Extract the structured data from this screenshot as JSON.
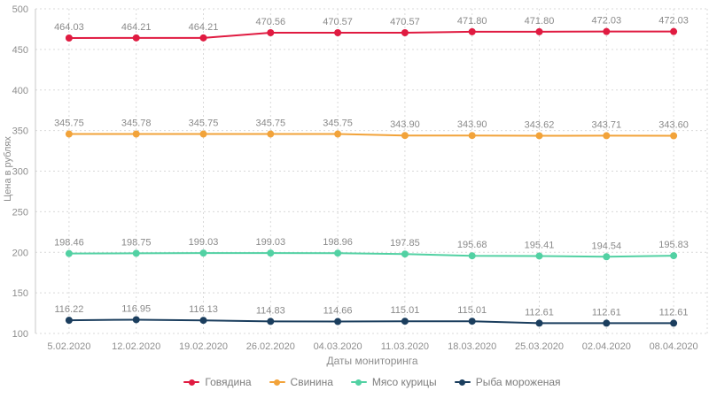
{
  "chart_data": {
    "type": "line",
    "title": "",
    "xlabel": "Даты мониторинга",
    "ylabel": "Цена в рублях",
    "ylim": [
      100,
      500
    ],
    "ytick_step": 50,
    "grid": true,
    "legend_position": "bottom",
    "categories": [
      "5.02.2020",
      "12.02.2020",
      "19.02.2020",
      "26.02.2020",
      "04.03.2020",
      "11.03.2020",
      "18.03.2020",
      "25.03.2020",
      "02.04.2020",
      "08.04.2020"
    ],
    "series": [
      {
        "name": "Говядина",
        "color": "#e01b41",
        "values": [
          464.03,
          464.21,
          464.21,
          470.56,
          470.57,
          470.57,
          471.8,
          471.8,
          472.03,
          472.03
        ]
      },
      {
        "name": "Свинина",
        "color": "#f2a33a",
        "values": [
          345.75,
          345.78,
          345.75,
          345.75,
          345.75,
          343.9,
          343.9,
          343.62,
          343.71,
          343.6
        ]
      },
      {
        "name": "Мясо курицы",
        "color": "#52d1a3",
        "values": [
          198.46,
          198.75,
          199.03,
          199.03,
          198.96,
          197.85,
          195.68,
          195.41,
          194.54,
          195.83
        ]
      },
      {
        "name": "Рыба мороженая",
        "color": "#1b3e5e",
        "values": [
          116.22,
          116.95,
          116.13,
          114.83,
          114.66,
          115.01,
          115.01,
          112.61,
          112.61,
          112.61
        ]
      }
    ],
    "colors": {
      "gridline": "#d9d9d9",
      "axis_line": "#c8c8c8",
      "label_text": "#8a8a8a"
    }
  }
}
